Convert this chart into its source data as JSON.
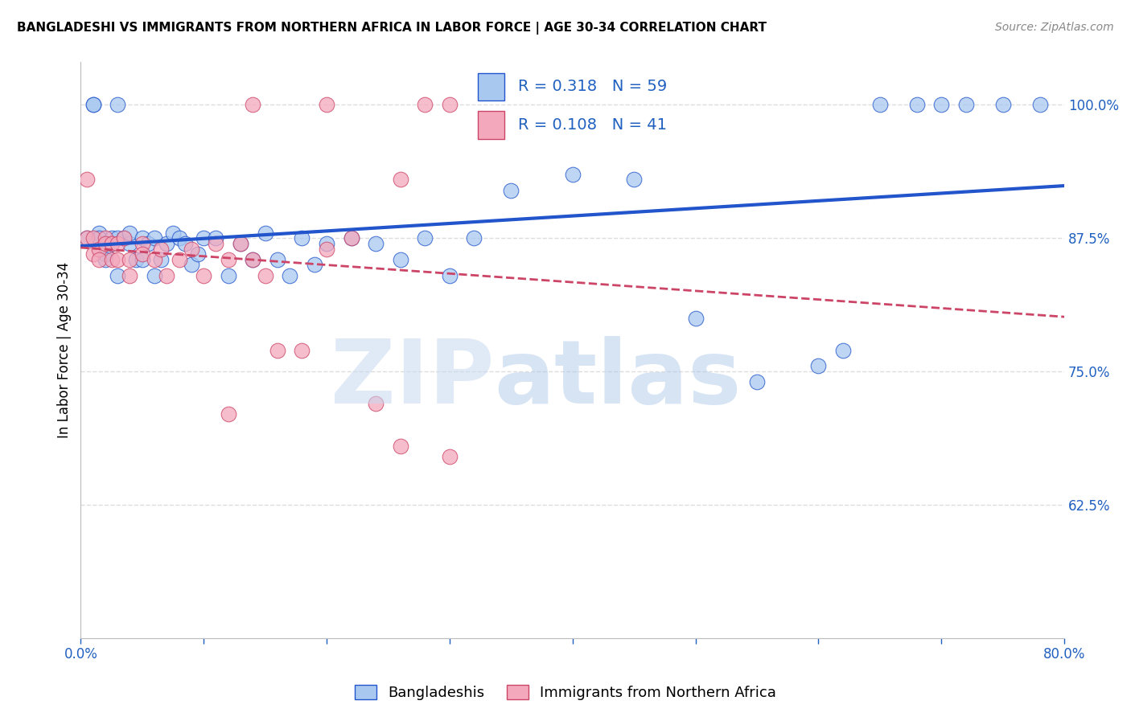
{
  "title": "BANGLADESHI VS IMMIGRANTS FROM NORTHERN AFRICA IN LABOR FORCE | AGE 30-34 CORRELATION CHART",
  "source": "Source: ZipAtlas.com",
  "ylabel": "In Labor Force | Age 30-34",
  "xlim": [
    0.0,
    0.8
  ],
  "ylim": [
    0.5,
    1.04
  ],
  "xticks": [
    0.0,
    0.1,
    0.2,
    0.3,
    0.4,
    0.5,
    0.6,
    0.7,
    0.8
  ],
  "xticklabels": [
    "0.0%",
    "",
    "",
    "",
    "",
    "",
    "",
    "",
    "80.0%"
  ],
  "yticks": [
    0.625,
    0.75,
    0.875,
    1.0
  ],
  "yticklabels": [
    "62.5%",
    "75.0%",
    "87.5%",
    "100.0%"
  ],
  "legend_blue_R": "0.318",
  "legend_blue_N": "59",
  "legend_pink_R": "0.108",
  "legend_pink_N": "41",
  "legend_label_blue": "Bangladeshis",
  "legend_label_pink": "Immigrants from Northern Africa",
  "blue_color": "#A8C8F0",
  "pink_color": "#F4A8BC",
  "trend_blue_color": "#2255CC",
  "trend_pink_color": "#CC4466",
  "grid_color": "#DDDDDD",
  "axis_color": "#2060C0",
  "blue_scatter_x": [
    0.005,
    0.01,
    0.01,
    0.015,
    0.015,
    0.02,
    0.02,
    0.02,
    0.025,
    0.025,
    0.03,
    0.03,
    0.03,
    0.035,
    0.04,
    0.04,
    0.045,
    0.05,
    0.05,
    0.055,
    0.06,
    0.06,
    0.065,
    0.07,
    0.075,
    0.08,
    0.085,
    0.09,
    0.095,
    0.1,
    0.11,
    0.12,
    0.13,
    0.14,
    0.15,
    0.16,
    0.17,
    0.18,
    0.19,
    0.2,
    0.22,
    0.24,
    0.26,
    0.28,
    0.3,
    0.32,
    0.35,
    0.4,
    0.45,
    0.5,
    0.55,
    0.6,
    0.62,
    0.65,
    0.68,
    0.7,
    0.72,
    0.75,
    0.78
  ],
  "blue_scatter_y": [
    0.875,
    1.0,
    1.0,
    0.88,
    0.875,
    0.87,
    0.86,
    0.855,
    0.875,
    0.87,
    0.84,
    0.875,
    1.0,
    0.875,
    0.87,
    0.88,
    0.855,
    0.875,
    0.855,
    0.87,
    0.84,
    0.875,
    0.855,
    0.87,
    0.88,
    0.875,
    0.87,
    0.85,
    0.86,
    0.875,
    0.875,
    0.84,
    0.87,
    0.855,
    0.88,
    0.855,
    0.84,
    0.875,
    0.85,
    0.87,
    0.875,
    0.87,
    0.855,
    0.875,
    0.84,
    0.875,
    0.92,
    0.935,
    0.93,
    0.8,
    0.74,
    0.755,
    0.77,
    1.0,
    1.0,
    1.0,
    1.0,
    1.0,
    1.0
  ],
  "pink_scatter_x": [
    0.005,
    0.01,
    0.01,
    0.015,
    0.015,
    0.02,
    0.02,
    0.025,
    0.025,
    0.03,
    0.03,
    0.035,
    0.04,
    0.04,
    0.05,
    0.05,
    0.06,
    0.065,
    0.07,
    0.08,
    0.09,
    0.1,
    0.11,
    0.12,
    0.13,
    0.14,
    0.15,
    0.16,
    0.18,
    0.2,
    0.22,
    0.24,
    0.26,
    0.28,
    0.3,
    0.12,
    0.2,
    0.005,
    0.14,
    0.26,
    0.3
  ],
  "pink_scatter_y": [
    0.875,
    0.875,
    0.86,
    0.865,
    0.855,
    0.875,
    0.87,
    0.855,
    0.87,
    0.855,
    0.87,
    0.875,
    0.84,
    0.855,
    0.87,
    0.86,
    0.855,
    0.865,
    0.84,
    0.855,
    0.865,
    0.84,
    0.87,
    0.855,
    0.87,
    0.855,
    0.84,
    0.77,
    0.77,
    0.865,
    0.875,
    0.72,
    0.93,
    1.0,
    1.0,
    0.71,
    1.0,
    0.93,
    1.0,
    0.68,
    0.67
  ]
}
